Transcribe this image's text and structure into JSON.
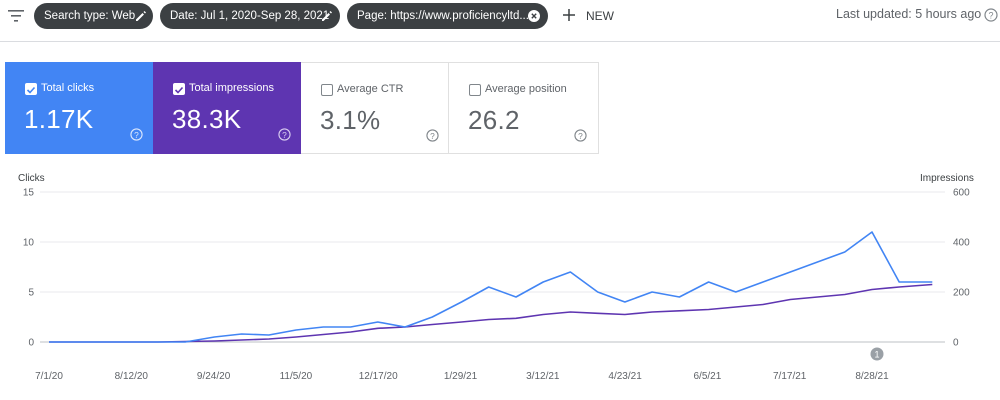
{
  "filters": {
    "search_type": "Search type: Web",
    "date": "Date: Jul 1, 2020-Sep 28, 2021",
    "page": "Page: https://www.proficiencyltd...."
  },
  "new_label": "NEW",
  "last_updated": "Last updated: 5 hours ago",
  "icons": {
    "filter": "filter-icon",
    "edit": "pencil-icon",
    "remove": "close-circle-icon",
    "add": "plus-icon",
    "help": "help-circle-icon",
    "check": "checkbox-checked-icon",
    "annotation": "annotation-marker-icon"
  },
  "metrics": [
    {
      "label": "Total clicks",
      "value": "1.17K",
      "checked": true,
      "color": "#4285f4"
    },
    {
      "label": "Total impressions",
      "value": "38.3K",
      "checked": true,
      "color": "#5e35b1"
    },
    {
      "label": "Average CTR",
      "value": "3.1%",
      "checked": false,
      "color": "#ffffff"
    },
    {
      "label": "Average position",
      "value": "26.2",
      "checked": false,
      "color": "#ffffff"
    }
  ],
  "chart_data": {
    "type": "line",
    "y_left_label": "Clicks",
    "y_right_label": "Impressions",
    "ylim_left": [
      0,
      15
    ],
    "ylim_right": [
      0,
      600
    ],
    "y_left_ticks": [
      "15",
      "10",
      "5",
      "0"
    ],
    "y_right_ticks": [
      "600",
      "400",
      "200",
      "0"
    ],
    "x_ticks": [
      "7/1/20",
      "8/12/20",
      "9/24/20",
      "11/5/20",
      "12/17/20",
      "1/29/21",
      "3/12/21",
      "4/23/21",
      "6/5/21",
      "7/17/21",
      "8/28/21"
    ],
    "grid": true,
    "annotation_marker": "1",
    "annotation_date": "8/28/21",
    "series": [
      {
        "name": "Clicks",
        "axis": "left",
        "color": "#4285f4",
        "x": [
          "7/1/20",
          "7/15/20",
          "7/29/20",
          "8/12/20",
          "8/26/20",
          "9/9/20",
          "9/24/20",
          "10/8/20",
          "10/22/20",
          "11/5/20",
          "11/19/20",
          "12/3/20",
          "12/17/20",
          "12/31/20",
          "1/14/21",
          "1/29/21",
          "2/12/21",
          "2/26/21",
          "3/12/21",
          "3/26/21",
          "4/9/21",
          "4/23/21",
          "5/7/21",
          "5/21/21",
          "6/5/21",
          "6/19/21",
          "7/3/21",
          "7/17/21",
          "7/31/21",
          "8/14/21",
          "8/28/21",
          "9/11/21",
          "9/28/21"
        ],
        "values": [
          0,
          0,
          0,
          0,
          0,
          0,
          0.5,
          0.8,
          0.7,
          1.2,
          1.5,
          1.5,
          2,
          1.5,
          2.5,
          4,
          5.5,
          4.5,
          6,
          7,
          5,
          4,
          5,
          4.5,
          6,
          5,
          6,
          7,
          8,
          9,
          11,
          6,
          6
        ]
      },
      {
        "name": "Impressions",
        "axis": "right",
        "color": "#5e35b1",
        "x": [
          "7/1/20",
          "7/15/20",
          "7/29/20",
          "8/12/20",
          "8/26/20",
          "9/9/20",
          "9/24/20",
          "10/8/20",
          "10/22/20",
          "11/5/20",
          "11/19/20",
          "12/3/20",
          "12/17/20",
          "12/31/20",
          "1/14/21",
          "1/29/21",
          "2/12/21",
          "2/26/21",
          "3/12/21",
          "3/26/21",
          "4/9/21",
          "4/23/21",
          "5/7/21",
          "5/21/21",
          "6/5/21",
          "6/19/21",
          "7/3/21",
          "7/17/21",
          "7/31/21",
          "8/14/21",
          "8/28/21",
          "9/11/21",
          "9/28/21"
        ],
        "values": [
          0,
          0,
          0,
          0,
          0,
          2,
          4,
          8,
          12,
          20,
          30,
          40,
          55,
          60,
          70,
          80,
          90,
          95,
          110,
          120,
          115,
          110,
          120,
          125,
          130,
          140,
          150,
          170,
          180,
          190,
          210,
          220,
          230
        ]
      }
    ]
  }
}
